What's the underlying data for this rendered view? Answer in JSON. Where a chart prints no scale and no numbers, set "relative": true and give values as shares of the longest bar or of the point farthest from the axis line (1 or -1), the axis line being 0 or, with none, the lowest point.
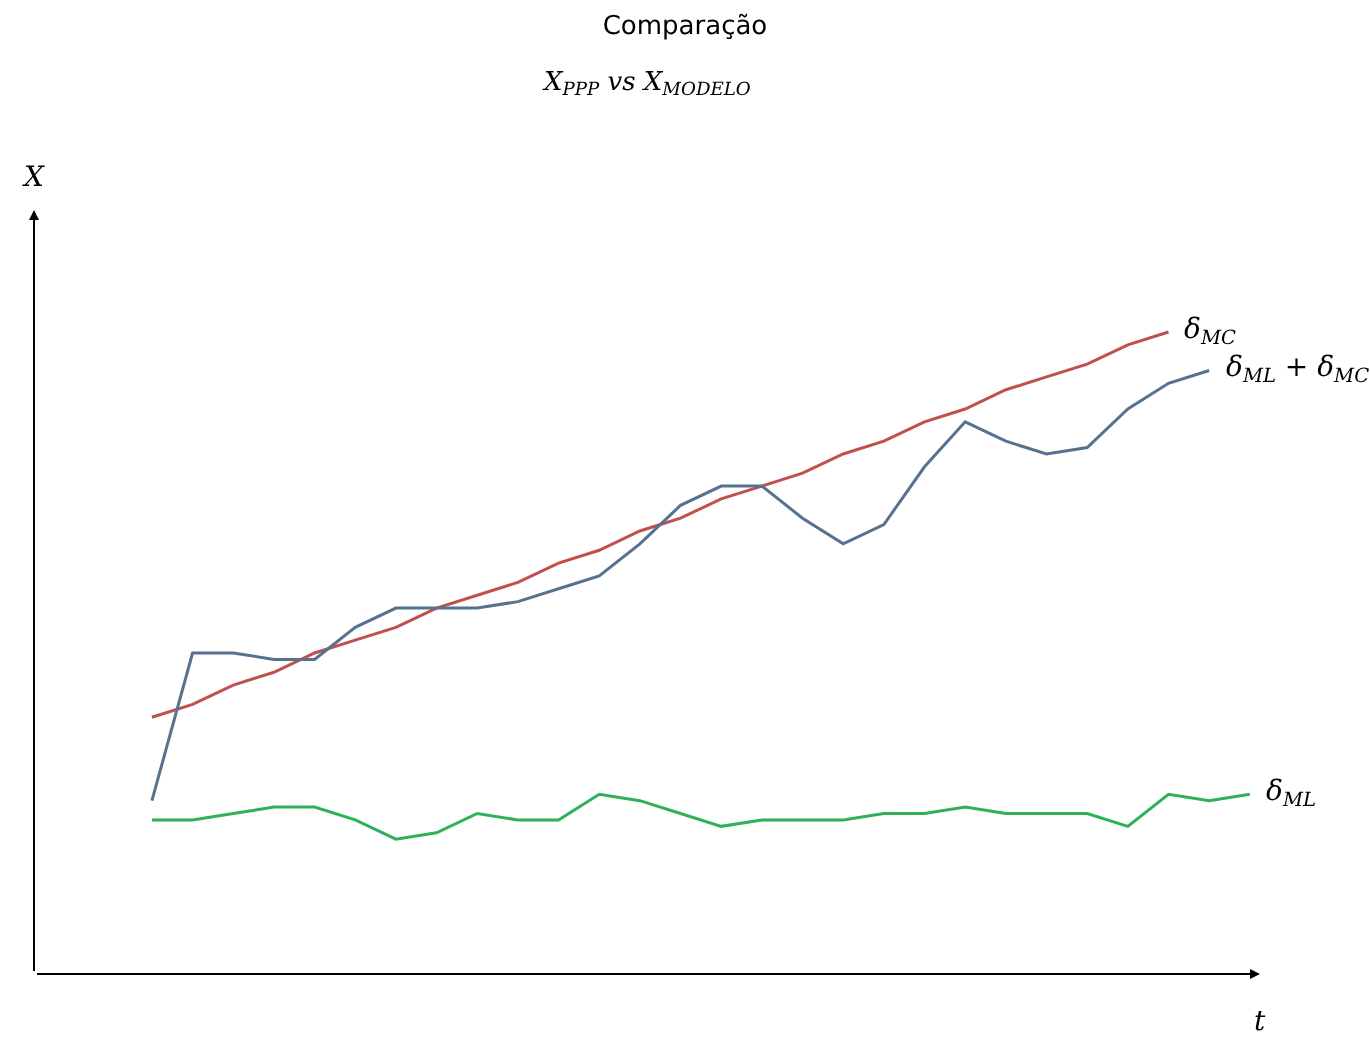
{
  "chart_data": {
    "type": "line",
    "title": "Comparação",
    "subtitle": "X$_{PPP}$ vs X$_{MODELO}$",
    "xlabel": "t",
    "annotations": [
      "X"
    ],
    "relative": true,
    "legend": false,
    "marker": "none",
    "line_style": "solid",
    "categories": [
      null,
      null,
      null,
      null,
      null,
      null,
      null,
      null,
      null,
      null,
      null,
      null,
      null,
      null,
      null,
      null,
      null,
      null,
      null,
      null,
      null,
      null,
      null,
      null,
      null,
      null,
      null,
      null
    ],
    "series": [
      {
        "name": "δ$_{MC}$",
        "color": "#c0504d",
        "values": [
          0.4,
          0.42,
          0.45,
          0.47,
          0.5,
          0.52,
          0.54,
          0.57,
          0.59,
          0.61,
          0.64,
          0.66,
          0.69,
          0.71,
          0.74,
          0.76,
          0.78,
          0.81,
          0.83,
          0.86,
          0.88,
          0.91,
          0.93,
          0.95,
          0.98,
          1.0,
          null,
          null
        ]
      },
      {
        "name": "δ$_{ML}$ + δ$_{MC}$",
        "color": "#56728f",
        "values": [
          0.27,
          0.5,
          0.5,
          0.49,
          0.49,
          0.54,
          0.57,
          0.57,
          0.57,
          0.58,
          0.6,
          0.62,
          0.67,
          0.73,
          0.76,
          0.76,
          0.71,
          0.67,
          0.7,
          0.79,
          0.86,
          0.83,
          0.81,
          0.82,
          0.88,
          0.92,
          0.94,
          null
        ]
      },
      {
        "name": "δ$_{ML}$",
        "color": "#2fb05a",
        "values": [
          0.24,
          0.24,
          0.25,
          0.26,
          0.26,
          0.24,
          0.21,
          0.22,
          0.25,
          0.24,
          0.24,
          0.28,
          0.27,
          0.25,
          0.23,
          0.24,
          0.24,
          0.24,
          0.25,
          0.25,
          0.26,
          0.25,
          0.25,
          0.25,
          0.23,
          0.28,
          0.27,
          0.28
        ]
      }
    ]
  }
}
